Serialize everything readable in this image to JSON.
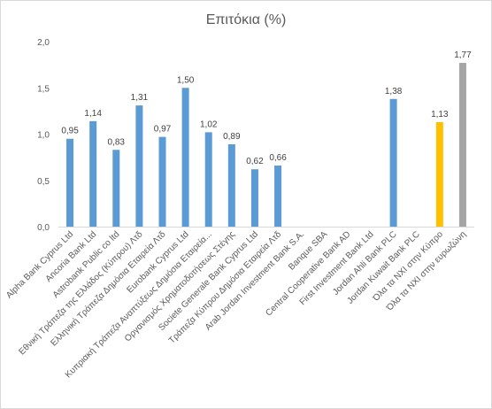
{
  "chart_data": {
    "type": "bar",
    "title": "Επιτόκια  (%)",
    "xlabel": "",
    "ylabel": "",
    "ylim": [
      0,
      2.0
    ],
    "yticks": [
      "0,0",
      "0,5",
      "1,0",
      "1,5",
      "2,0"
    ],
    "ytick_values": [
      0,
      0.5,
      1.0,
      1.5,
      2.0
    ],
    "grid": false,
    "legend": "none",
    "categories": [
      "Alpha Bank Cyprus Ltd",
      "Ancoria Bank Ltd",
      "Astrobank Public co ltd",
      "Εθνική Τράπεζα της Ελλάδος (Κύπρου) Λτδ",
      "Ελληνική Τράπεζα Δημόσια Εταιρεία Λτδ",
      "Eurobank Cyprus Ltd",
      "Κυπριακή Τράπεζα Αναπτύξεως Δημόσια Εταιρεία...",
      "Οργανισμός Χρηματοδοτήσεως Στέγης",
      "Societe Generale Bank Cyprus Ltd",
      "Τράπεζα Κύπρου Δημόσια Εταιρεία Λτδ",
      "Arab Jordan Investment Bank S.A.",
      "Banque SBA",
      "Central Cooperative Bank AD",
      "First Investment Bank Ltd",
      "Jordan Ahli Bank PLC",
      "Jordan Kuwait Bank PLC",
      "Όλα τα ΝΧΙ στην Κύπρο",
      "Όλα τα ΝΧΙ στην ευρωζώνη"
    ],
    "values": [
      0.95,
      1.14,
      0.83,
      1.31,
      0.97,
      1.5,
      1.02,
      0.89,
      0.62,
      0.66,
      null,
      null,
      null,
      null,
      1.38,
      null,
      1.13,
      1.77
    ],
    "value_labels": [
      "0,95",
      "1,14",
      "0,83",
      "1,31",
      "0,97",
      "1,50",
      "1,02",
      "0,89",
      "0,62",
      "0,66",
      "",
      "",
      "",
      "",
      "1,38",
      "",
      "1,13",
      "1,77"
    ],
    "colors": [
      "#5b9bd5",
      "#5b9bd5",
      "#5b9bd5",
      "#5b9bd5",
      "#5b9bd5",
      "#5b9bd5",
      "#5b9bd5",
      "#5b9bd5",
      "#5b9bd5",
      "#5b9bd5",
      "#5b9bd5",
      "#5b9bd5",
      "#5b9bd5",
      "#5b9bd5",
      "#5b9bd5",
      "#5b9bd5",
      "#ffc000",
      "#a5a5a5"
    ]
  }
}
